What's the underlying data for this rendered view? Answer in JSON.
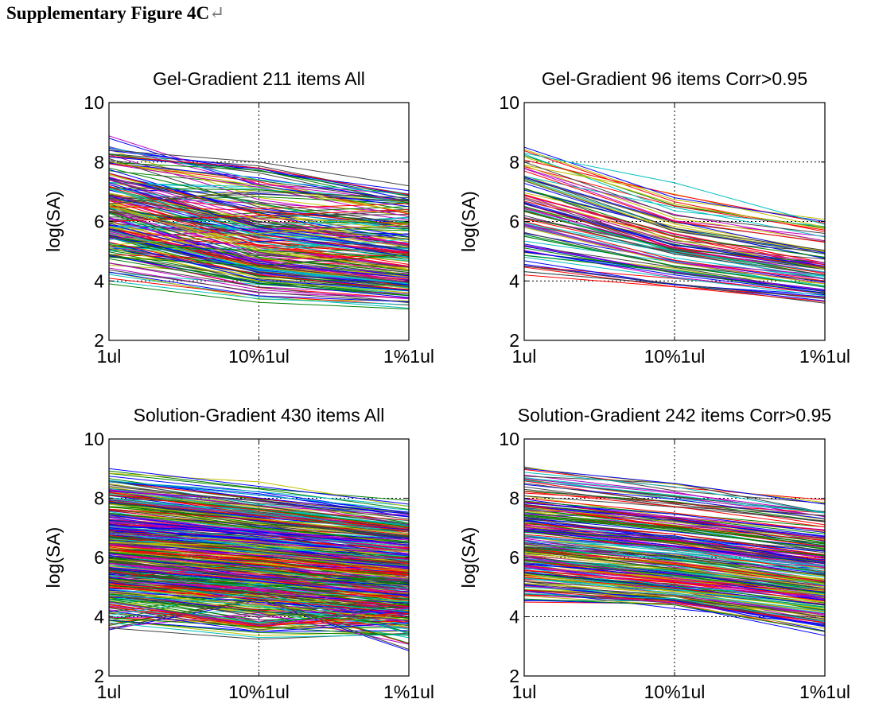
{
  "page": {
    "title": "Supplementary Figure 4C",
    "title_mark": "↵"
  },
  "chart_data": [
    {
      "type": "line",
      "title": "Gel-Gradient 211 items All",
      "xlabel": "",
      "ylabel": "log(SA)",
      "categories": [
        "1ul",
        "10%1ul",
        "1%1ul"
      ],
      "yticks": [
        2,
        4,
        6,
        8,
        10
      ],
      "ylim": [
        2,
        10
      ],
      "grid": "dotted",
      "series_count": 211,
      "series": [
        {
          "values": [
            8.8,
            7.2,
            6.5
          ]
        },
        {
          "values": [
            8.5,
            7.4,
            6.9
          ]
        },
        {
          "values": [
            8.4,
            8.0,
            7.2
          ]
        },
        {
          "values": [
            8.2,
            7.8,
            6.9
          ]
        },
        {
          "values": [
            8.0,
            7.2,
            6.3
          ]
        },
        {
          "values": [
            7.8,
            6.6,
            5.8
          ]
        },
        {
          "values": [
            7.5,
            6.1,
            5.2
          ]
        },
        {
          "values": [
            7.3,
            5.8,
            5.0
          ]
        },
        {
          "values": [
            7.1,
            5.5,
            4.8
          ]
        },
        {
          "values": [
            6.9,
            5.9,
            5.4
          ]
        },
        {
          "values": [
            6.7,
            5.2,
            4.5
          ]
        },
        {
          "values": [
            6.5,
            5.0,
            4.4
          ]
        },
        {
          "values": [
            6.3,
            4.8,
            4.2
          ]
        },
        {
          "values": [
            6.1,
            4.7,
            4.0
          ]
        },
        {
          "values": [
            5.9,
            4.6,
            4.1
          ]
        },
        {
          "values": [
            5.7,
            4.4,
            3.9
          ]
        },
        {
          "values": [
            5.5,
            4.3,
            3.8
          ]
        },
        {
          "values": [
            5.3,
            4.2,
            3.7
          ]
        },
        {
          "values": [
            5.1,
            4.0,
            3.6
          ]
        },
        {
          "values": [
            4.9,
            3.9,
            3.5
          ]
        },
        {
          "values": [
            4.6,
            3.7,
            3.4
          ]
        },
        {
          "values": [
            4.3,
            3.5,
            3.3
          ]
        },
        {
          "values": [
            4.0,
            3.4,
            3.2
          ]
        },
        {
          "values": [
            6.6,
            7.0,
            6.8
          ]
        },
        {
          "values": [
            6.0,
            6.2,
            6.4
          ]
        },
        {
          "values": [
            5.2,
            5.6,
            5.9
          ]
        },
        {
          "values": [
            4.8,
            4.5,
            4.9
          ]
        }
      ]
    },
    {
      "type": "line",
      "title": "Gel-Gradient 96 items Corr>0.95",
      "xlabel": "",
      "ylabel": "log(SA)",
      "categories": [
        "1ul",
        "10%1ul",
        "1%1ul"
      ],
      "yticks": [
        2,
        4,
        6,
        8,
        10
      ],
      "ylim": [
        2,
        10
      ],
      "grid": "dotted",
      "series_count": 96,
      "series": [
        {
          "values": [
            8.5,
            6.8,
            6.0
          ]
        },
        {
          "values": [
            8.3,
            7.3,
            5.9
          ]
        },
        {
          "values": [
            8.0,
            6.2,
            5.6
          ]
        },
        {
          "values": [
            7.7,
            6.0,
            5.3
          ]
        },
        {
          "values": [
            7.4,
            5.7,
            5.0
          ]
        },
        {
          "values": [
            7.1,
            5.5,
            4.8
          ]
        },
        {
          "values": [
            6.8,
            5.3,
            4.6
          ]
        },
        {
          "values": [
            6.6,
            5.2,
            4.5
          ]
        },
        {
          "values": [
            6.4,
            5.0,
            4.3
          ]
        },
        {
          "values": [
            6.2,
            4.9,
            4.2
          ]
        },
        {
          "values": [
            6.0,
            4.7,
            4.0
          ]
        },
        {
          "values": [
            5.8,
            4.6,
            3.9
          ]
        },
        {
          "values": [
            5.5,
            4.5,
            3.8
          ]
        },
        {
          "values": [
            5.2,
            4.3,
            3.7
          ]
        },
        {
          "values": [
            5.0,
            4.2,
            3.6
          ]
        },
        {
          "values": [
            4.8,
            4.1,
            3.5
          ]
        },
        {
          "values": [
            4.5,
            3.9,
            3.4
          ]
        },
        {
          "values": [
            4.2,
            3.8,
            3.3
          ]
        }
      ]
    },
    {
      "type": "line",
      "title": "Solution-Gradient 430 items All",
      "xlabel": "",
      "ylabel": "log(SA)",
      "categories": [
        "1ul",
        "10%1ul",
        "1%1ul"
      ],
      "yticks": [
        2,
        4,
        6,
        8,
        10
      ],
      "ylim": [
        2,
        10
      ],
      "grid": "dotted",
      "series_count": 430,
      "series": [
        {
          "values": [
            9.0,
            8.4,
            7.8
          ]
        },
        {
          "values": [
            8.6,
            8.1,
            7.6
          ]
        },
        {
          "values": [
            8.4,
            7.9,
            7.3
          ]
        },
        {
          "values": [
            8.1,
            7.6,
            7.0
          ]
        },
        {
          "values": [
            7.8,
            7.3,
            6.8
          ]
        },
        {
          "values": [
            7.5,
            7.0,
            6.5
          ]
        },
        {
          "values": [
            7.2,
            6.8,
            6.3
          ]
        },
        {
          "values": [
            7.0,
            6.6,
            6.1
          ]
        },
        {
          "values": [
            6.8,
            6.4,
            5.9
          ]
        },
        {
          "values": [
            6.6,
            6.2,
            5.7
          ]
        },
        {
          "values": [
            6.4,
            6.0,
            5.5
          ]
        },
        {
          "values": [
            6.2,
            5.8,
            5.3
          ]
        },
        {
          "values": [
            6.0,
            5.6,
            5.1
          ]
        },
        {
          "values": [
            5.8,
            5.4,
            4.9
          ]
        },
        {
          "values": [
            5.6,
            5.2,
            4.7
          ]
        },
        {
          "values": [
            5.4,
            5.0,
            4.5
          ]
        },
        {
          "values": [
            5.2,
            4.8,
            4.3
          ]
        },
        {
          "values": [
            5.0,
            4.6,
            4.1
          ]
        },
        {
          "values": [
            4.8,
            4.4,
            3.9
          ]
        },
        {
          "values": [
            4.6,
            4.2,
            3.7
          ]
        },
        {
          "values": [
            4.5,
            3.7,
            4.3
          ]
        },
        {
          "values": [
            4.2,
            3.5,
            3.8
          ]
        },
        {
          "values": [
            3.8,
            3.3,
            3.4
          ]
        },
        {
          "values": [
            3.6,
            4.6,
            2.9
          ]
        },
        {
          "values": [
            7.9,
            7.4,
            6.9
          ]
        },
        {
          "values": [
            6.5,
            6.4,
            6.2
          ]
        }
      ]
    },
    {
      "type": "line",
      "title": "Solution-Gradient 242 items Corr>0.95",
      "xlabel": "",
      "ylabel": "log(SA)",
      "categories": [
        "1ul",
        "10%1ul",
        "1%1ul"
      ],
      "yticks": [
        2,
        4,
        6,
        8,
        10
      ],
      "ylim": [
        2,
        10
      ],
      "grid": "dotted",
      "series_count": 242,
      "series": [
        {
          "values": [
            9.0,
            8.5,
            7.8
          ]
        },
        {
          "values": [
            8.6,
            8.1,
            7.5
          ]
        },
        {
          "values": [
            8.3,
            7.8,
            7.2
          ]
        },
        {
          "values": [
            8.0,
            7.5,
            6.9
          ]
        },
        {
          "values": [
            7.7,
            7.2,
            6.6
          ]
        },
        {
          "values": [
            7.4,
            6.9,
            6.3
          ]
        },
        {
          "values": [
            7.1,
            6.6,
            6.0
          ]
        },
        {
          "values": [
            6.9,
            6.4,
            5.8
          ]
        },
        {
          "values": [
            6.7,
            6.2,
            5.6
          ]
        },
        {
          "values": [
            6.5,
            6.0,
            5.4
          ]
        },
        {
          "values": [
            6.3,
            5.8,
            5.2
          ]
        },
        {
          "values": [
            6.1,
            5.6,
            5.0
          ]
        },
        {
          "values": [
            5.9,
            5.4,
            4.8
          ]
        },
        {
          "values": [
            5.7,
            5.2,
            4.6
          ]
        },
        {
          "values": [
            5.5,
            5.0,
            4.4
          ]
        },
        {
          "values": [
            5.3,
            4.8,
            4.2
          ]
        },
        {
          "values": [
            5.1,
            4.7,
            4.0
          ]
        },
        {
          "values": [
            4.9,
            4.5,
            3.8
          ]
        },
        {
          "values": [
            4.7,
            4.4,
            3.6
          ]
        },
        {
          "values": [
            4.6,
            4.4,
            3.5
          ]
        }
      ]
    }
  ]
}
